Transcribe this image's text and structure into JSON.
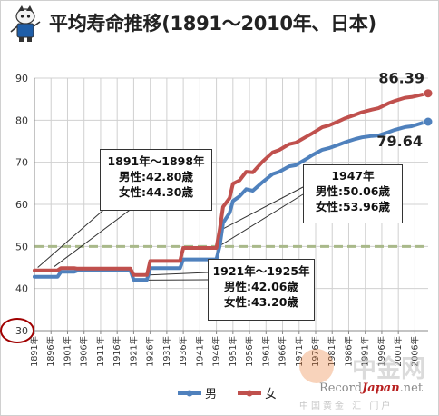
{
  "title": "平均寿命推移(1891〜2010年、日本)",
  "colors": {
    "male": "#4f81bd",
    "female": "#c0504d",
    "reference_line": "#a9b98a",
    "highlight_circle": "#a00000",
    "grid": "#d0d0d0"
  },
  "chart_data": {
    "type": "line",
    "title": "平均寿命推移(1891〜2010年、日本)",
    "xlabel": "",
    "ylabel": "",
    "ylim": [
      30,
      90
    ],
    "y_ticks": [
      "30",
      "40",
      "50",
      "60",
      "70",
      "80",
      "90"
    ],
    "x_range": [
      1891,
      2010
    ],
    "x_tick_labels": [
      "1891年",
      "1896年",
      "1901年",
      "1906年",
      "1911年",
      "1916年",
      "1921年",
      "1926年",
      "1931年",
      "1936年",
      "1941年",
      "1946年",
      "1951年",
      "1956年",
      "1961年",
      "1966年",
      "1971年",
      "1976年",
      "1981年",
      "1986年",
      "1991年",
      "1996年",
      "2001年",
      "2006年"
    ],
    "grid": true,
    "reference_line_value": 50,
    "legend_position": "bottom",
    "series": [
      {
        "name": "男",
        "x": [
          1891,
          1898,
          1899,
          1903,
          1904,
          1908,
          1909,
          1913,
          1914,
          1920,
          1921,
          1925,
          1926,
          1935,
          1936,
          1946,
          1947,
          1948,
          1950,
          1951,
          1953,
          1955,
          1957,
          1960,
          1963,
          1965,
          1968,
          1970,
          1973,
          1975,
          1978,
          1980,
          1983,
          1985,
          1988,
          1990,
          1993,
          1995,
          1998,
          2000,
          2003,
          2005,
          2008,
          2010
        ],
        "values": [
          42.8,
          42.8,
          43.97,
          43.97,
          44.25,
          44.25,
          44.25,
          44.25,
          44.25,
          44.25,
          42.06,
          42.06,
          44.82,
          44.82,
          46.92,
          46.92,
          50.06,
          55.6,
          58.0,
          60.8,
          61.9,
          63.6,
          63.24,
          65.32,
          67.21,
          67.74,
          69.05,
          69.31,
          70.7,
          71.73,
          72.97,
          73.35,
          74.2,
          74.78,
          75.54,
          75.92,
          76.25,
          76.38,
          77.16,
          77.72,
          78.36,
          78.56,
          79.29,
          79.64
        ]
      },
      {
        "name": "女",
        "x": [
          1891,
          1898,
          1899,
          1903,
          1904,
          1908,
          1909,
          1913,
          1914,
          1920,
          1921,
          1925,
          1926,
          1935,
          1936,
          1946,
          1947,
          1948,
          1950,
          1951,
          1953,
          1955,
          1957,
          1960,
          1963,
          1965,
          1968,
          1970,
          1973,
          1975,
          1978,
          1980,
          1983,
          1985,
          1988,
          1990,
          1993,
          1995,
          1998,
          2000,
          2003,
          2005,
          2008,
          2010
        ],
        "values": [
          44.3,
          44.3,
          44.85,
          44.85,
          44.73,
          44.73,
          44.73,
          44.73,
          44.73,
          44.73,
          43.2,
          43.2,
          46.54,
          46.54,
          49.63,
          49.63,
          53.96,
          59.4,
          61.5,
          64.9,
          65.7,
          67.75,
          67.6,
          70.19,
          72.34,
          72.92,
          74.3,
          74.66,
          76.02,
          76.89,
          78.33,
          78.76,
          79.78,
          80.48,
          81.3,
          81.9,
          82.51,
          82.85,
          84.01,
          84.6,
          85.33,
          85.52,
          86.05,
          86.39
        ]
      }
    ],
    "end_labels": [
      "86.39",
      "79.64"
    ],
    "annotations": [
      {
        "id": "c1891",
        "lines": [
          "1891年〜1898年",
          "男性:42.80歳",
          "女性:44.30歳"
        ]
      },
      {
        "id": "c1947",
        "lines": [
          "1947年",
          "男性:50.06歳",
          "女性:53.96歳"
        ]
      },
      {
        "id": "c1921",
        "lines": [
          "1921年〜1925年",
          "男性:42.06歳",
          "女性:43.20歳"
        ]
      }
    ]
  },
  "watermark": {
    "record": "Record",
    "japan": "Japan",
    "net": ".net",
    "big": "中金网",
    "cn_line": "中国黄金 汇 门户"
  }
}
